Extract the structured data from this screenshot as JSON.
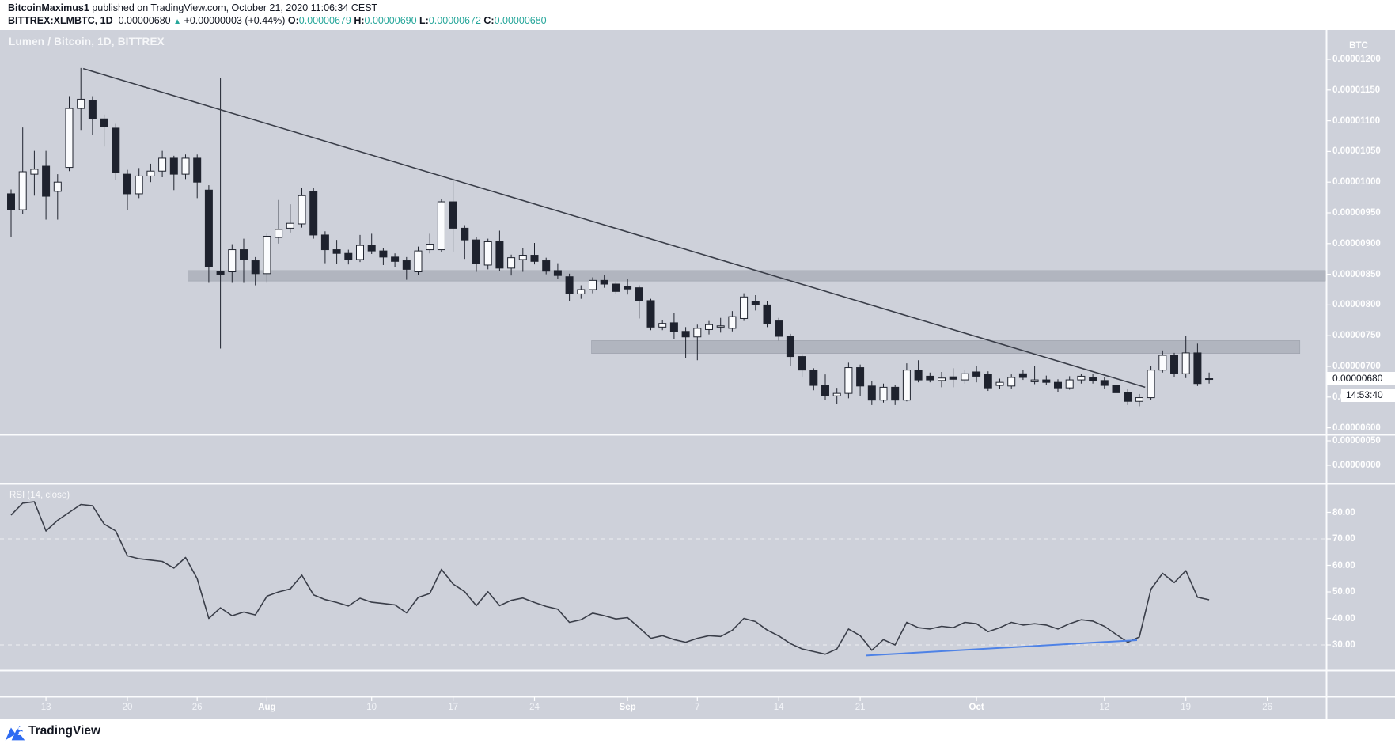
{
  "header": {
    "line1": {
      "author": "BitcoinMaximus1",
      "rest": " published on TradingView.com, October 21, 2020 11:06:34 CEST"
    },
    "line2": {
      "symbol": "BITTREX:XLMBTC, 1D",
      "last": "0.00000680",
      "direction": "▲",
      "change": "+0.00000003 (+0.44%)",
      "o_label": "O:",
      "o": "0.00000679",
      "h_label": "H:",
      "h": "0.00000690",
      "l_label": "L:",
      "l": "0.00000672",
      "c_label": "C:",
      "c": "0.00000680"
    }
  },
  "watermark": "Lumen / Bitcoin, 1D, BITTREX",
  "price_axis": {
    "unit": "BTC",
    "last_price_label": "0.00000680",
    "countdown": "14:53:40"
  },
  "rsi_pane": {
    "title": "RSI (14, close)"
  },
  "footer": {
    "brand": "TradingView"
  },
  "colors": {
    "chart_bg": "#ced1da",
    "zone_gray": "#b1b5bf",
    "candle_down": "#1e222e",
    "candle_up": "#fbfcfe",
    "wick": "#20242f",
    "line_dark": "#3a3e49",
    "rsi_blue": "#4e82e6",
    "teal": "#26a69a",
    "axis_text": "#ffffff"
  },
  "chart_data": {
    "type": "candlestick",
    "title": "Lumen / Bitcoin, 1D, BITTREX",
    "symbol": "BITTREX:XLMBTC",
    "exchange": "BITTREX",
    "interval": "1D",
    "price_unit": "BTC",
    "price_value_scale": 1e-08,
    "price_axis_ticks": [
      1200,
      1150,
      1100,
      1050,
      1000,
      950,
      900,
      850,
      800,
      750,
      700,
      650,
      600
    ],
    "pane2_axis_ticks": [
      50,
      0
    ],
    "rsi_axis_ticks": [
      80,
      70,
      60,
      50,
      40,
      30
    ],
    "rsi_dashed_levels": [
      70,
      30
    ],
    "grid": "off",
    "time_axis_labels": [
      {
        "label": "13",
        "day": 3,
        "month": false
      },
      {
        "label": "20",
        "day": 10,
        "month": false
      },
      {
        "label": "26",
        "day": 16,
        "month": false
      },
      {
        "label": "Aug",
        "day": 22,
        "month": true
      },
      {
        "label": "10",
        "day": 31,
        "month": false
      },
      {
        "label": "17",
        "day": 38,
        "month": false
      },
      {
        "label": "24",
        "day": 45,
        "month": false
      },
      {
        "label": "Sep",
        "day": 53,
        "month": true
      },
      {
        "label": "7",
        "day": 59,
        "month": false
      },
      {
        "label": "14",
        "day": 66,
        "month": false
      },
      {
        "label": "21",
        "day": 73,
        "month": false
      },
      {
        "label": "Oct",
        "day": 83,
        "month": true
      },
      {
        "label": "12",
        "day": 94,
        "month": false
      },
      {
        "label": "19",
        "day": 101,
        "month": false
      },
      {
        "label": "26",
        "day": 108,
        "month": false
      }
    ],
    "candle_format": [
      "date",
      "open",
      "high",
      "low",
      "close"
    ],
    "candles": [
      [
        "Jul 10",
        981,
        988,
        910,
        955
      ],
      [
        "Jul 11",
        955,
        1089,
        948,
        1017
      ],
      [
        "Jul 12",
        1013,
        1051,
        978,
        1021
      ],
      [
        "Jul 13",
        1026,
        1051,
        939,
        977
      ],
      [
        "Jul 14",
        985,
        1013,
        939,
        1000
      ],
      [
        "Jul 15",
        1024,
        1140,
        1018,
        1120
      ],
      [
        "Jul 16",
        1120,
        1186,
        1085,
        1135
      ],
      [
        "Jul 17",
        1133,
        1140,
        1077,
        1103
      ],
      [
        "Jul 18",
        1103,
        1110,
        1058,
        1090
      ],
      [
        "Jul 19",
        1088,
        1095,
        1004,
        1016
      ],
      [
        "Jul 20",
        1013,
        1020,
        955,
        981
      ],
      [
        "Jul 21",
        981,
        1023,
        974,
        1010
      ],
      [
        "Jul 22",
        1010,
        1030,
        1000,
        1018
      ],
      [
        "Jul 23",
        1018,
        1051,
        1008,
        1039
      ],
      [
        "Jul 24",
        1039,
        1043,
        987,
        1013
      ],
      [
        "Jul 25",
        1013,
        1045,
        1005,
        1039
      ],
      [
        "Jul 26",
        1039,
        1045,
        974,
        1000
      ],
      [
        "Jul 27",
        987,
        995,
        836,
        862
      ],
      [
        "Jul 28",
        855,
        1170,
        729,
        850
      ],
      [
        "Jul 29",
        854,
        899,
        836,
        890
      ],
      [
        "Jul 30",
        890,
        908,
        836,
        874
      ],
      [
        "Jul 31",
        872,
        878,
        832,
        851
      ],
      [
        "Aug 1",
        851,
        916,
        836,
        912
      ],
      [
        "Aug 2",
        910,
        971,
        900,
        923
      ],
      [
        "Aug 3",
        925,
        964,
        918,
        933
      ],
      [
        "Aug 4",
        932,
        990,
        926,
        978
      ],
      [
        "Aug 5",
        985,
        990,
        908,
        914
      ],
      [
        "Aug 6",
        914,
        920,
        868,
        890
      ],
      [
        "Aug 7",
        890,
        906,
        867,
        884
      ],
      [
        "Aug 8",
        884,
        890,
        866,
        874
      ],
      [
        "Aug 9",
        874,
        914,
        870,
        897
      ],
      [
        "Aug 10",
        897,
        916,
        883,
        888
      ],
      [
        "Aug 11",
        888,
        893,
        865,
        878
      ],
      [
        "Aug 12",
        878,
        884,
        862,
        871
      ],
      [
        "Aug 13",
        872,
        878,
        841,
        858
      ],
      [
        "Aug 14",
        854,
        895,
        849,
        888
      ],
      [
        "Aug 15",
        890,
        916,
        884,
        899
      ],
      [
        "Aug 16",
        890,
        972,
        886,
        968
      ],
      [
        "Aug 17",
        968,
        1006,
        887,
        925
      ],
      [
        "Aug 18",
        925,
        930,
        875,
        906
      ],
      [
        "Aug 19",
        906,
        911,
        854,
        867
      ],
      [
        "Aug 20",
        865,
        908,
        858,
        903
      ],
      [
        "Aug 21",
        903,
        921,
        855,
        860
      ],
      [
        "Aug 22",
        860,
        882,
        848,
        877
      ],
      [
        "Aug 23",
        874,
        892,
        854,
        881
      ],
      [
        "Aug 24",
        881,
        901,
        866,
        871
      ],
      [
        "Aug 25",
        872,
        877,
        850,
        855
      ],
      [
        "Aug 26",
        856,
        868,
        843,
        848
      ],
      [
        "Aug 27",
        846,
        851,
        807,
        818
      ],
      [
        "Aug 28",
        818,
        832,
        810,
        825
      ],
      [
        "Aug 29",
        825,
        845,
        819,
        840
      ],
      [
        "Aug 30",
        840,
        849,
        828,
        834
      ],
      [
        "Aug 31",
        834,
        838,
        818,
        822
      ],
      [
        "Sep 1",
        830,
        842,
        817,
        826
      ],
      [
        "Sep 2",
        828,
        832,
        778,
        807
      ],
      [
        "Sep 3",
        807,
        810,
        759,
        764
      ],
      [
        "Sep 4",
        764,
        775,
        759,
        770
      ],
      [
        "Sep 5",
        771,
        787,
        745,
        757
      ],
      [
        "Sep 6",
        757,
        764,
        713,
        748
      ],
      [
        "Sep 7",
        748,
        768,
        710,
        762
      ],
      [
        "Sep 8",
        760,
        774,
        752,
        768
      ],
      [
        "Sep 9",
        764,
        779,
        755,
        766
      ],
      [
        "Sep 10",
        762,
        790,
        757,
        781
      ],
      [
        "Sep 11",
        778,
        819,
        774,
        813
      ],
      [
        "Sep 12",
        806,
        816,
        791,
        800
      ],
      [
        "Sep 13",
        800,
        806,
        764,
        770
      ],
      [
        "Sep 14",
        774,
        779,
        742,
        749
      ],
      [
        "Sep 15",
        749,
        753,
        700,
        716
      ],
      [
        "Sep 16",
        716,
        720,
        682,
        694
      ],
      [
        "Sep 17",
        694,
        697,
        661,
        669
      ],
      [
        "Sep 18",
        669,
        687,
        645,
        652
      ],
      [
        "Sep 19",
        652,
        665,
        639,
        656
      ],
      [
        "Sep 20",
        656,
        706,
        648,
        698
      ],
      [
        "Sep 21",
        698,
        703,
        652,
        668
      ],
      [
        "Sep 22",
        668,
        676,
        637,
        645
      ],
      [
        "Sep 23",
        645,
        672,
        641,
        666
      ],
      [
        "Sep 24",
        666,
        670,
        637,
        645
      ],
      [
        "Sep 25",
        645,
        705,
        643,
        694
      ],
      [
        "Sep 26",
        694,
        710,
        674,
        678
      ],
      [
        "Sep 27",
        684,
        690,
        674,
        678
      ],
      [
        "Sep 28",
        677,
        691,
        666,
        681
      ],
      [
        "Sep 29",
        683,
        697,
        666,
        679
      ],
      [
        "Sep 30",
        678,
        694,
        672,
        688
      ],
      [
        "Oct 1",
        691,
        700,
        674,
        684
      ],
      [
        "Oct 2",
        687,
        692,
        660,
        665
      ],
      [
        "Oct 3",
        669,
        680,
        663,
        674
      ],
      [
        "Oct 4",
        668,
        687,
        664,
        682
      ],
      [
        "Oct 5",
        688,
        694,
        678,
        682
      ],
      [
        "Oct 6",
        675,
        700,
        671,
        678
      ],
      [
        "Oct 7",
        678,
        685,
        670,
        674
      ],
      [
        "Oct 8",
        674,
        679,
        658,
        665
      ],
      [
        "Oct 9",
        665,
        684,
        662,
        678
      ],
      [
        "Oct 10",
        678,
        688,
        672,
        684
      ],
      [
        "Oct 11",
        682,
        688,
        672,
        677
      ],
      [
        "Oct 12",
        677,
        683,
        664,
        669
      ],
      [
        "Oct 13",
        669,
        674,
        650,
        657
      ],
      [
        "Oct 14",
        657,
        663,
        637,
        643
      ],
      [
        "Oct 15",
        643,
        655,
        635,
        649
      ],
      [
        "Oct 16",
        649,
        700,
        645,
        694
      ],
      [
        "Oct 17",
        694,
        726,
        690,
        718
      ],
      [
        "Oct 18",
        718,
        722,
        682,
        688
      ],
      [
        "Oct 19",
        688,
        749,
        681,
        722
      ],
      [
        "Oct 20",
        722,
        737,
        668,
        672
      ],
      [
        "Oct 21",
        679,
        690,
        672,
        680
      ]
    ],
    "rsi": [
      79,
      83.5,
      84,
      73,
      77,
      80,
      83,
      82.5,
      75.6,
      73,
      63.6,
      62.5,
      62,
      61.5,
      59,
      63,
      55,
      40,
      44,
      41,
      42.4,
      41.3,
      48.4,
      50,
      51.1,
      56.3,
      48.9,
      47.1,
      46,
      44.7,
      47.6,
      46.1,
      45.6,
      45.1,
      42.1,
      47.9,
      49.4,
      58.5,
      53,
      50.1,
      44.8,
      50.1,
      44.8,
      46.8,
      47.7,
      46,
      44.5,
      43.5,
      38.5,
      39.5,
      42,
      41,
      39.8,
      40.3,
      36.5,
      32.5,
      33.5,
      32,
      31,
      32.5,
      33.5,
      33.2,
      35.5,
      40,
      38.8,
      35.6,
      33.4,
      30.5,
      28.5,
      27.5,
      26.5,
      28.5,
      36,
      33.5,
      28,
      32,
      30,
      38.5,
      36.5,
      36,
      37,
      36.5,
      38.5,
      38,
      35,
      36.5,
      38.5,
      37.5,
      38,
      37.5,
      36,
      38,
      39.5,
      39,
      37,
      34,
      31,
      33,
      51,
      57,
      53.5,
      58,
      48,
      47
    ],
    "trendline": {
      "from_day": 6.2,
      "from_price": 1185,
      "to_day": 97.5,
      "to_price": 666
    },
    "resistance_zones": [
      {
        "from_day": 15.2,
        "to_day": 113,
        "price_low": 839,
        "price_high": 856
      },
      {
        "from_day": 49.9,
        "to_day": 110.8,
        "price_low": 721,
        "price_high": 742
      }
    ],
    "rsi_trendline": {
      "from_day": 73.5,
      "from_rsi": 26,
      "to_day": 96.8,
      "to_rsi": 31.8
    },
    "last_close": 680,
    "countdown": "14:53:40"
  }
}
